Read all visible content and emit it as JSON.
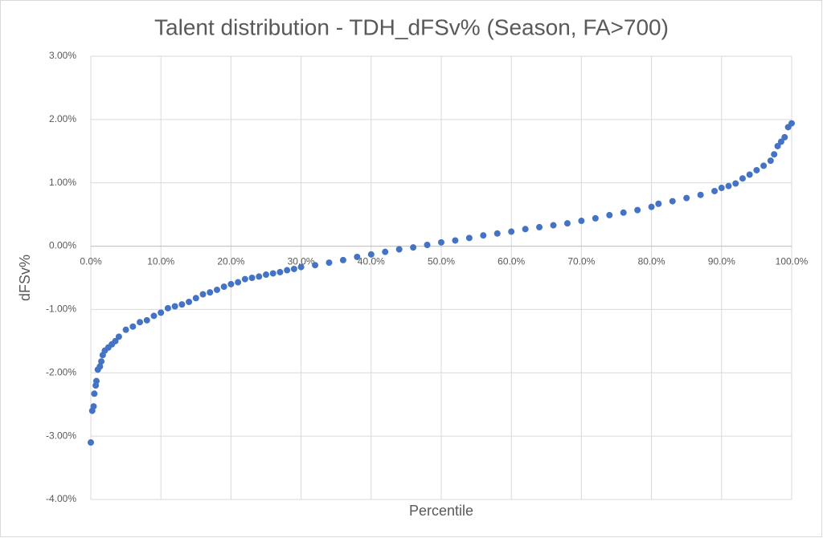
{
  "chart_data": {
    "type": "scatter",
    "title": "Talent distribution - TDH_dFSv% (Season, FA>700)",
    "x_label": "Percentile",
    "y_label": "dFSv%",
    "xlim": [
      0,
      100
    ],
    "ylim": [
      -4,
      3
    ],
    "xticks": [
      {
        "value": 0,
        "label": "0.0%"
      },
      {
        "value": 10,
        "label": "10.0%"
      },
      {
        "value": 20,
        "label": "20.0%"
      },
      {
        "value": 30,
        "label": "30.0%"
      },
      {
        "value": 40,
        "label": "40.0%"
      },
      {
        "value": 50,
        "label": "50.0%"
      },
      {
        "value": 60,
        "label": "60.0%"
      },
      {
        "value": 70,
        "label": "70.0%"
      },
      {
        "value": 80,
        "label": "80.0%"
      },
      {
        "value": 90,
        "label": "90.0%"
      },
      {
        "value": 100,
        "label": "100.0%"
      }
    ],
    "yticks": [
      {
        "value": -4,
        "label": "-4.00%"
      },
      {
        "value": -3,
        "label": "-3.00%"
      },
      {
        "value": -2,
        "label": "-2.00%"
      },
      {
        "value": -1,
        "label": "-1.00%"
      },
      {
        "value": 0,
        "label": "0.00%"
      },
      {
        "value": 1,
        "label": "1.00%"
      },
      {
        "value": 2,
        "label": "2.00%"
      },
      {
        "value": 3,
        "label": "3.00%"
      }
    ],
    "grid": true,
    "series": [
      {
        "color": "#4472c4",
        "x": [
          0,
          0.2,
          0.4,
          0.5,
          0.7,
          0.8,
          1,
          1.3,
          1.5,
          1.7,
          2,
          2.5,
          3,
          3.5,
          4,
          5,
          6,
          7,
          8,
          9,
          10,
          11,
          12,
          13,
          14,
          15,
          16,
          17,
          18,
          19,
          20,
          21,
          22,
          23,
          24,
          25,
          26,
          27,
          28,
          29,
          30,
          32,
          34,
          36,
          38,
          40,
          42,
          44,
          46,
          48,
          50,
          52,
          54,
          56,
          58,
          60,
          62,
          64,
          66,
          68,
          70,
          72,
          74,
          76,
          78,
          80,
          81,
          83,
          85,
          87,
          89,
          90,
          91,
          92,
          93,
          94,
          95,
          96,
          97,
          97.5,
          98,
          98.5,
          99,
          99.5,
          100
        ],
        "values": [
          -3.1,
          -2.6,
          -2.53,
          -2.33,
          -2.2,
          -2.13,
          -1.95,
          -1.9,
          -1.82,
          -1.72,
          -1.65,
          -1.6,
          -1.55,
          -1.5,
          -1.43,
          -1.32,
          -1.27,
          -1.2,
          -1.17,
          -1.1,
          -1.05,
          -0.98,
          -0.95,
          -0.92,
          -0.88,
          -0.82,
          -0.76,
          -0.73,
          -0.69,
          -0.64,
          -0.6,
          -0.57,
          -0.52,
          -0.5,
          -0.48,
          -0.45,
          -0.43,
          -0.41,
          -0.38,
          -0.36,
          -0.33,
          -0.3,
          -0.26,
          -0.22,
          -0.17,
          -0.13,
          -0.09,
          -0.05,
          -0.02,
          0.02,
          0.06,
          0.09,
          0.13,
          0.17,
          0.2,
          0.23,
          0.27,
          0.3,
          0.33,
          0.36,
          0.4,
          0.44,
          0.49,
          0.53,
          0.57,
          0.62,
          0.67,
          0.71,
          0.76,
          0.81,
          0.87,
          0.92,
          0.95,
          0.99,
          1.07,
          1.13,
          1.2,
          1.27,
          1.35,
          1.45,
          1.58,
          1.65,
          1.72,
          1.88,
          1.94
        ]
      }
    ]
  }
}
